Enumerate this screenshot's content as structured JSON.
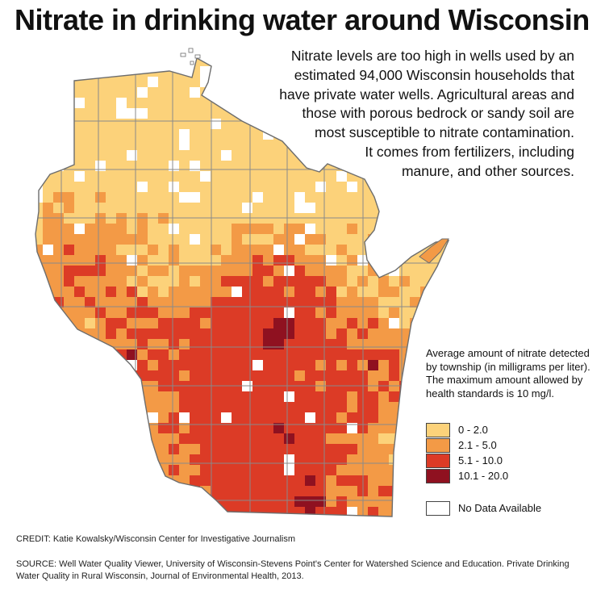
{
  "title": "Nitrate in drinking water around Wisconsin",
  "intro_lines": [
    "Nitrate levels are too high in wells used by an",
    "estimated 94,000 Wisconsin households that",
    "have private water wells. Agricultural areas and",
    "those with porous bedrock or sandy soil are",
    "most susceptible to nitrate contamination.",
    "It comes from fertilizers, including",
    "manure, and other sources."
  ],
  "legend": {
    "description": "Average amount of nitrate detected by township (in milligrams per liter). The maximum amount allowed by health standards is 10 mg/l.",
    "items": [
      {
        "label": "0 - 2.0",
        "color": "#fcd27a"
      },
      {
        "label": "2.1 - 5.0",
        "color": "#f39a46"
      },
      {
        "label": "5.1 - 10.0",
        "color": "#dc3b26"
      },
      {
        "label": "10.1 - 20.0",
        "color": "#8f1120"
      },
      {
        "label": "No Data Available",
        "color": "#ffffff"
      }
    ]
  },
  "colors": {
    "border": "#8a8a8a",
    "text": "#111111"
  },
  "credit": "CREDIT: Katie Kowalsky/Wisconsin Center for Investigative Journalism",
  "source": "SOURCE: Well Water Quality Viewer, University of Wisconsin-Stevens Point's Center for Watershed Science and Education. Private Drinking Water Quality in Rural Wisconsin, Journal of Environmental Health, 2013."
}
